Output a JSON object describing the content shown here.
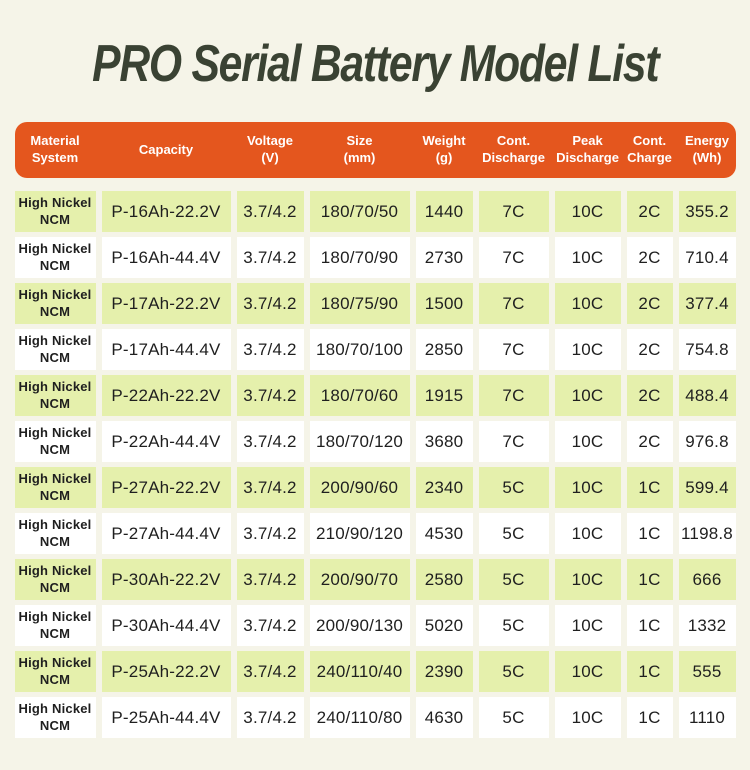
{
  "title": "PRO Serial Battery Model List",
  "colors": {
    "background": "#f5f4e8",
    "header_bg": "#e4561e",
    "header_text": "#ffffff",
    "row_alt_bg": "#e5f0ac",
    "row_bg": "#ffffff",
    "title_text": "#3a4233",
    "cell_text": "#1f1f1f"
  },
  "table": {
    "columns": [
      "Material\nSystem",
      "Capacity",
      "Voltage\n(V)",
      "Size\n(mm)",
      "Weight\n(g)",
      "Cont.\nDischarge",
      "Peak\nDischarge",
      "Cont.\nCharge",
      "Energy\n(Wh)"
    ],
    "rows": [
      [
        "High Nickel NCM",
        "P-16Ah-22.2V",
        "3.7/4.2",
        "180/70/50",
        "1440",
        "7C",
        "10C",
        "2C",
        "355.2"
      ],
      [
        "High Nickel NCM",
        "P-16Ah-44.4V",
        "3.7/4.2",
        "180/70/90",
        "2730",
        "7C",
        "10C",
        "2C",
        "710.4"
      ],
      [
        "High Nickel NCM",
        "P-17Ah-22.2V",
        "3.7/4.2",
        "180/75/90",
        "1500",
        "7C",
        "10C",
        "2C",
        "377.4"
      ],
      [
        "High Nickel NCM",
        "P-17Ah-44.4V",
        "3.7/4.2",
        "180/70/100",
        "2850",
        "7C",
        "10C",
        "2C",
        "754.8"
      ],
      [
        "High Nickel NCM",
        "P-22Ah-22.2V",
        "3.7/4.2",
        "180/70/60",
        "1915",
        "7C",
        "10C",
        "2C",
        "488.4"
      ],
      [
        "High Nickel NCM",
        "P-22Ah-44.4V",
        "3.7/4.2",
        "180/70/120",
        "3680",
        "7C",
        "10C",
        "2C",
        "976.8"
      ],
      [
        "High Nickel NCM",
        "P-27Ah-22.2V",
        "3.7/4.2",
        "200/90/60",
        "2340",
        "5C",
        "10C",
        "1C",
        "599.4"
      ],
      [
        "High Nickel NCM",
        "P-27Ah-44.4V",
        "3.7/4.2",
        "210/90/120",
        "4530",
        "5C",
        "10C",
        "1C",
        "1198.8"
      ],
      [
        "High Nickel NCM",
        "P-30Ah-22.2V",
        "3.7/4.2",
        "200/90/70",
        "2580",
        "5C",
        "10C",
        "1C",
        "666"
      ],
      [
        "High Nickel NCM",
        "P-30Ah-44.4V",
        "3.7/4.2",
        "200/90/130",
        "5020",
        "5C",
        "10C",
        "1C",
        "1332"
      ],
      [
        "High Nickel NCM",
        "P-25Ah-22.2V",
        "3.7/4.2",
        "240/110/40",
        "2390",
        "5C",
        "10C",
        "1C",
        "555"
      ],
      [
        "High Nickel NCM",
        "P-25Ah-44.4V",
        "3.7/4.2",
        "240/110/80",
        "4630",
        "5C",
        "10C",
        "1C",
        "1110"
      ]
    ]
  }
}
